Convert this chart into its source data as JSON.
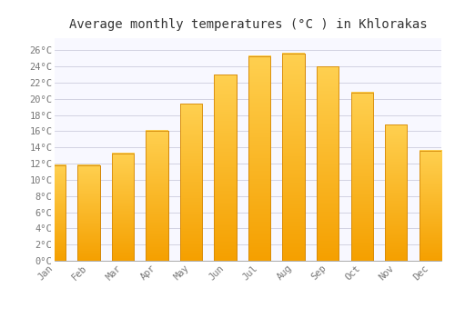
{
  "title": "Average monthly temperatures (°C ) in Khlorakas",
  "months": [
    "Jan",
    "Feb",
    "Mar",
    "Apr",
    "May",
    "Jun",
    "Jul",
    "Aug",
    "Sep",
    "Oct",
    "Nov",
    "Dec"
  ],
  "temperatures": [
    11.8,
    11.8,
    13.3,
    16.1,
    19.4,
    23.0,
    25.3,
    25.6,
    24.0,
    20.8,
    16.8,
    13.6
  ],
  "bar_color_top": "#FFD050",
  "bar_color_bottom": "#F5A000",
  "bar_edge_color": "#D4880A",
  "background_color": "#FFFFFF",
  "plot_bg_color": "#F8F8FF",
  "grid_color": "#CCCCDD",
  "ytick_labels": [
    "0°C",
    "2°C",
    "4°C",
    "6°C",
    "8°C",
    "10°C",
    "12°C",
    "14°C",
    "16°C",
    "18°C",
    "20°C",
    "22°C",
    "24°C",
    "26°C"
  ],
  "ytick_values": [
    0,
    2,
    4,
    6,
    8,
    10,
    12,
    14,
    16,
    18,
    20,
    22,
    24,
    26
  ],
  "ylim": [
    0,
    27.5
  ],
  "title_fontsize": 10,
  "tick_fontsize": 7.5,
  "font_family": "monospace"
}
